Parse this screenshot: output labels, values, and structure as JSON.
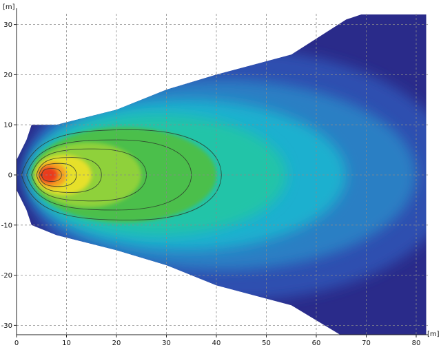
{
  "chart_data": {
    "type": "heatmap",
    "title": "",
    "xlabel": "",
    "ylabel": "",
    "x_unit": "[m]",
    "y_unit": "[m]",
    "xlim": [
      0,
      82
    ],
    "ylim": [
      -33,
      33
    ],
    "x_ticks": [
      0,
      10,
      20,
      30,
      40,
      50,
      60,
      70,
      80
    ],
    "y_ticks": [
      30,
      20,
      10,
      0,
      -10,
      -20,
      -30
    ],
    "grid": true,
    "beam": {
      "source": [
        0,
        0
      ],
      "hotspot": [
        5,
        0
      ],
      "outline_upper": [
        [
          0,
          3
        ],
        [
          2,
          7
        ],
        [
          3,
          10
        ],
        [
          8,
          10
        ],
        [
          20,
          13
        ],
        [
          30,
          17
        ],
        [
          40,
          20
        ],
        [
          55,
          24
        ],
        [
          66,
          31
        ],
        [
          69,
          32
        ],
        [
          82,
          32
        ]
      ],
      "outline_lower": [
        [
          0,
          -3
        ],
        [
          2,
          -7
        ],
        [
          3,
          -10
        ],
        [
          8,
          -12
        ],
        [
          20,
          -15
        ],
        [
          30,
          -18
        ],
        [
          40,
          -22
        ],
        [
          55,
          -26
        ],
        [
          65,
          -32
        ],
        [
          82,
          -32
        ]
      ],
      "contour_lines": [
        {
          "x_min": 1,
          "x_max": 41,
          "half_width": 9
        },
        {
          "x_min": 2,
          "x_max": 35,
          "half_width": 7
        },
        {
          "x_min": 3,
          "x_max": 26,
          "half_width": 5.2
        },
        {
          "x_min": 4,
          "x_max": 17,
          "half_width": 3.5
        },
        {
          "x_min": 4.5,
          "x_max": 12,
          "half_width": 2.3
        },
        {
          "x_min": 5,
          "x_max": 9,
          "half_width": 1.3
        }
      ]
    },
    "color_scale": [
      "#2a2b8a",
      "#2f4fb0",
      "#2a7fc4",
      "#1fb0cf",
      "#22c4a8",
      "#4cbf4c",
      "#8fd13a",
      "#e6e02a",
      "#f5a020",
      "#ea3a1a"
    ]
  }
}
